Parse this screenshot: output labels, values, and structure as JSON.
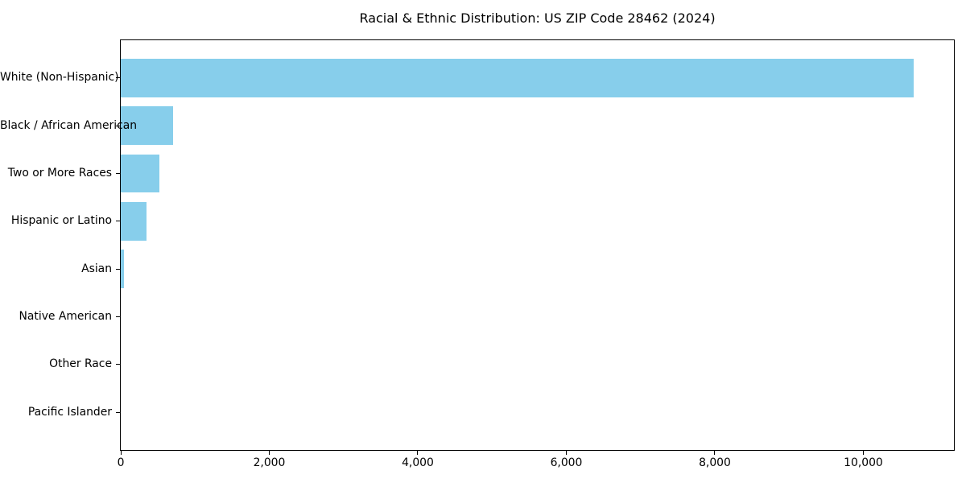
{
  "chart_data": {
    "type": "bar",
    "orientation": "horizontal",
    "title": "Racial & Ethnic Distribution: US ZIP Code 28462 (2024)",
    "categories": [
      "White (Non-Hispanic)",
      "Black / African American",
      "Two or More Races",
      "Hispanic or Latino",
      "Asian",
      "Native American",
      "Other Race",
      "Pacific Islander"
    ],
    "values": [
      10680,
      703,
      520,
      343,
      47,
      0,
      0,
      0
    ],
    "xlabel": "",
    "ylabel": "",
    "xlim": [
      0,
      11220
    ],
    "xticks": [
      0,
      2000,
      4000,
      6000,
      8000,
      10000
    ],
    "xtick_labels": [
      "0",
      "2,000",
      "4,000",
      "6,000",
      "8,000",
      "10,000"
    ],
    "grid": false,
    "legend": null,
    "bar_color": "#87CEEB",
    "background_color": "#ffffff",
    "axis_color": "#000000",
    "text_color": "#000000"
  }
}
